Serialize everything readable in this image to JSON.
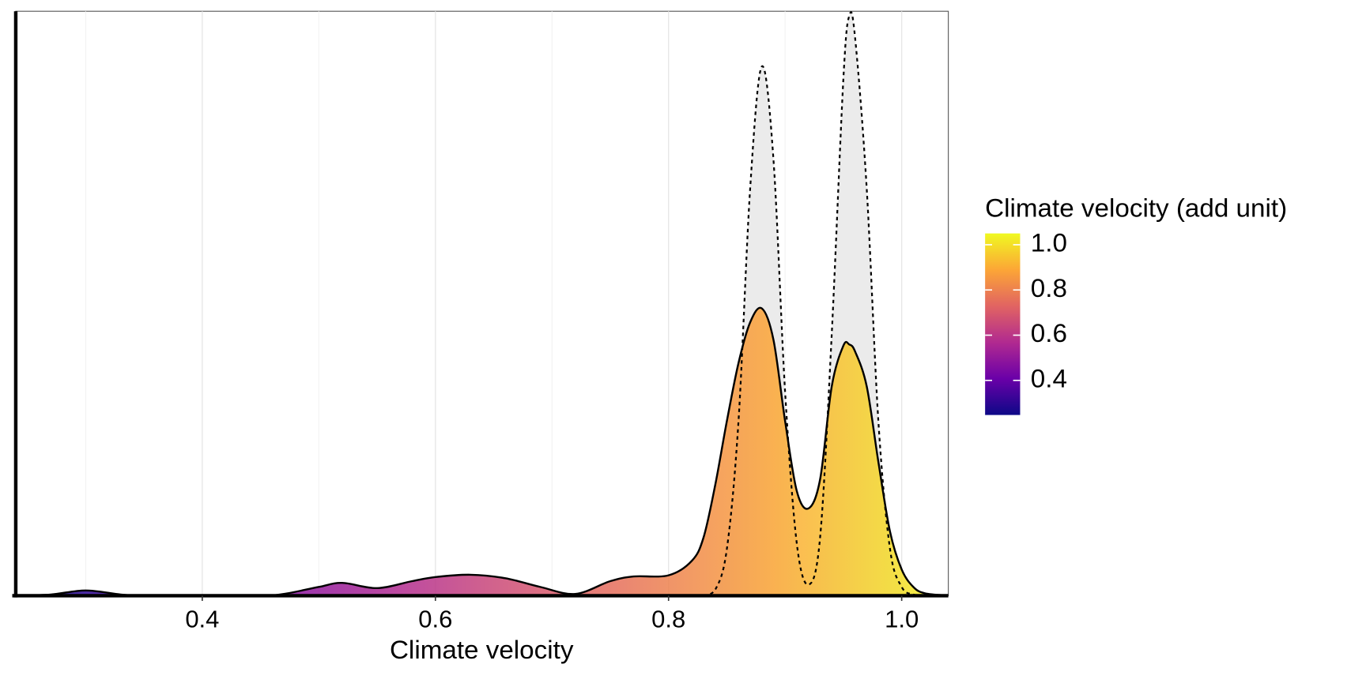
{
  "chart_data": {
    "type": "density",
    "xlabel": "Climate velocity",
    "legend_title": "Climate velocity (add unit)",
    "x": [
      0.24,
      0.27,
      0.3,
      0.33,
      0.35,
      0.4,
      0.45,
      0.47,
      0.5,
      0.52,
      0.55,
      0.58,
      0.6,
      0.63,
      0.66,
      0.69,
      0.72,
      0.75,
      0.77,
      0.8,
      0.82,
      0.83,
      0.84,
      0.85,
      0.86,
      0.87,
      0.88,
      0.89,
      0.9,
      0.91,
      0.92,
      0.93,
      0.94,
      0.95,
      0.955,
      0.96,
      0.97,
      0.98,
      0.99,
      1.0,
      1.01,
      1.02,
      1.04
    ],
    "series": [
      {
        "style": "dashed",
        "color": "#ebebeb",
        "values": [
          null,
          null,
          null,
          null,
          null,
          null,
          null,
          null,
          null,
          null,
          null,
          null,
          null,
          null,
          null,
          null,
          null,
          null,
          null,
          null,
          null,
          0,
          0.1,
          0.8,
          3.0,
          7.0,
          9.1,
          7.5,
          3.5,
          0.9,
          0.19,
          1.0,
          4.5,
          8.9,
          9.97,
          9.6,
          7.0,
          3.0,
          0.8,
          0.15,
          0.02,
          0,
          null
        ]
      },
      {
        "style": "solid",
        "color": "gradient",
        "values": [
          0,
          0.02,
          0.09,
          0.02,
          0,
          0,
          0,
          0.03,
          0.15,
          0.22,
          0.13,
          0.25,
          0.32,
          0.36,
          0.3,
          0.15,
          0.03,
          0.25,
          0.33,
          0.35,
          0.6,
          1.0,
          1.9,
          3.0,
          4.0,
          4.7,
          4.94,
          4.4,
          3.0,
          1.8,
          1.5,
          2.0,
          3.6,
          4.3,
          4.32,
          4.2,
          3.6,
          2.3,
          1.1,
          0.45,
          0.15,
          0.04,
          0
        ]
      }
    ],
    "xlim": [
      0.24,
      1.04
    ],
    "ylim": [
      0,
      10.05
    ],
    "xticks": [
      0.4,
      0.6,
      0.8,
      {
        "value": 1.0,
        "label": "1.0"
      }
    ],
    "xminor": [
      0.3,
      0.5,
      0.7,
      0.9
    ],
    "grid": true,
    "colors": [
      "#0d0887",
      "#6a00a8",
      "#b12a90",
      "#e16462",
      "#fca636",
      "#f0f921"
    ],
    "colorlim": [
      0.247,
      1.05
    ],
    "colorticks": [
      0.4,
      0.6,
      0.8,
      {
        "value": 1.0,
        "label": "1.0"
      }
    ]
  }
}
